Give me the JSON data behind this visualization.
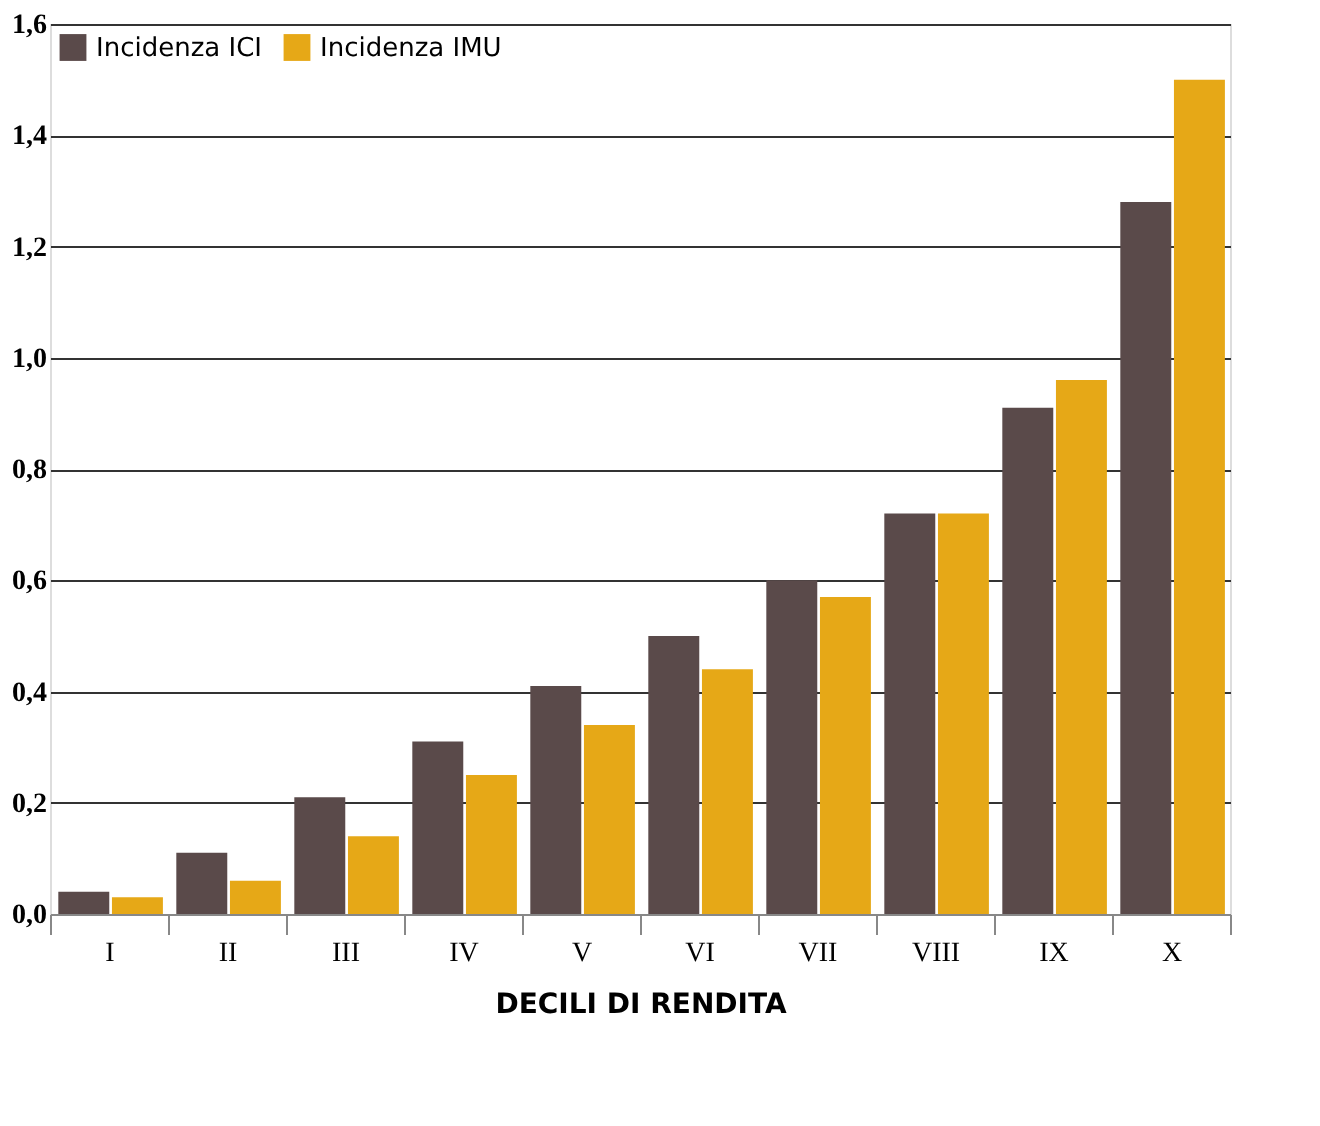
{
  "chart_data": {
    "type": "bar",
    "xlabel": "DECILI DI RENDITA",
    "categories": [
      "I",
      "II",
      "III",
      "IV",
      "V",
      "VI",
      "VII",
      "VIII",
      "IX",
      "X"
    ],
    "series": [
      {
        "name": "Incidenza ICI",
        "color": "#5a4a4a",
        "values": [
          0.04,
          0.11,
          0.21,
          0.31,
          0.41,
          0.5,
          0.6,
          0.72,
          0.91,
          1.28
        ]
      },
      {
        "name": "Incidenza IMU",
        "color": "#e6a817",
        "values": [
          0.03,
          0.06,
          0.14,
          0.25,
          0.34,
          0.44,
          0.57,
          0.72,
          0.96,
          1.5
        ]
      }
    ],
    "ylim": [
      0,
      1.6
    ],
    "yticks": [
      {
        "value": 0,
        "label": "0,0"
      },
      {
        "value": 0.2,
        "label": "0,2"
      },
      {
        "value": 0.4,
        "label": "0,4"
      },
      {
        "value": 0.6,
        "label": "0,6"
      },
      {
        "value": 0.8,
        "label": "0,8"
      },
      {
        "value": 1.0,
        "label": "1,0"
      },
      {
        "value": 1.2,
        "label": "1,2"
      },
      {
        "value": 1.4,
        "label": "1,4"
      },
      {
        "value": 1.6,
        "label": "1,6"
      }
    ],
    "grid": "y",
    "legend": "top left"
  }
}
